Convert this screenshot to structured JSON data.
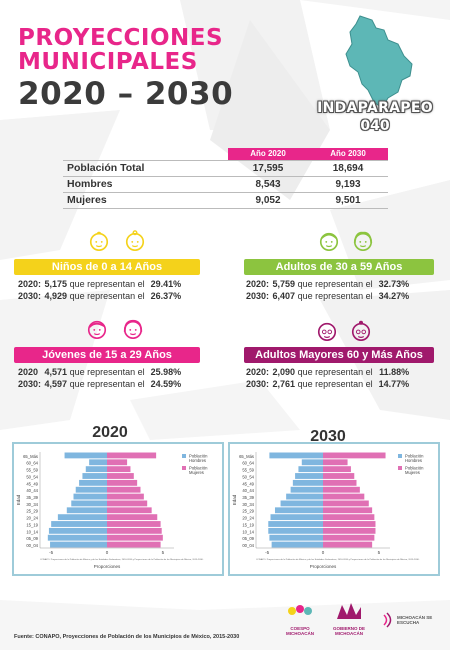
{
  "title": {
    "line1": "PROYECCIONES",
    "line2": "MUNICIPALES",
    "line3": "2020 – 2030"
  },
  "municipality": {
    "name": "INDAPARAPEO",
    "code": "040"
  },
  "table": {
    "headers": [
      "Año 2020",
      "Año 2030"
    ],
    "rows": [
      {
        "label": "Población Total",
        "v2020": "17,595",
        "v2030": "18,694"
      },
      {
        "label": "Hombres",
        "v2020": "8,543",
        "v2030": "9,193"
      },
      {
        "label": "Mujeres",
        "v2020": "9,052",
        "v2030": "9,501"
      }
    ]
  },
  "groups": [
    {
      "title": "Niños de 0 a 14 Años",
      "color": "#f4d21b",
      "icons": [
        "baby-boy-icon",
        "baby-girl-icon"
      ],
      "rows": [
        {
          "year": "2020:",
          "value": "5,175",
          "text": "que representan el",
          "pct": "29.41%"
        },
        {
          "year": "2030:",
          "value": "4,929",
          "text": "que representan el",
          "pct": "26.37%"
        }
      ]
    },
    {
      "title": "Adultos de 30 a 59 Años",
      "color": "#8cc43f",
      "icons": [
        "adult-man-icon",
        "adult-woman-icon"
      ],
      "rows": [
        {
          "year": "2020:",
          "value": "5,759",
          "text": "que representan el",
          "pct": "32.73%"
        },
        {
          "year": "2030:",
          "value": "6,407",
          "text": "que representan el",
          "pct": "34.27%"
        }
      ]
    },
    {
      "title": "Jóvenes de 15 a 29 Años",
      "color": "#e8268a",
      "icons": [
        "young-man-icon",
        "young-woman-icon"
      ],
      "rows": [
        {
          "year": "2020",
          "value": "4,571",
          "text": "que representan el",
          "pct": "25.98%"
        },
        {
          "year": "2030:",
          "value": "4,597",
          "text": "que representan el",
          "pct": "24.59%"
        }
      ]
    },
    {
      "title": "Adultos Mayores  60 y Más Años",
      "color": "#a0196c",
      "icons": [
        "elderly-man-icon",
        "elderly-woman-icon"
      ],
      "rows": [
        {
          "year": "2020:",
          "value": "2,090",
          "text": "que representan el",
          "pct": "11.88%"
        },
        {
          "year": "2030:",
          "value": "2,761",
          "text": "que representan el",
          "pct": "14.77%"
        }
      ]
    }
  ],
  "charts_titles": [
    "2020",
    "2030"
  ],
  "chart_data": [
    {
      "type": "bar",
      "title": "2020",
      "orientation": "horizontal-pyramid",
      "ylabel": "Edad",
      "xlabel": "Proporciones",
      "categories": [
        "00_04",
        "05_09",
        "10_14",
        "15_19",
        "20_24",
        "25_29",
        "30_34",
        "35_39",
        "40_44",
        "45_49",
        "50_54",
        "55_59",
        "60_64",
        "65_Más"
      ],
      "series": [
        {
          "name": "Población Hombres",
          "color": "#7fb6df",
          "values": [
            5.1,
            5.3,
            5.2,
            5.0,
            4.4,
            3.6,
            3.2,
            3.0,
            2.8,
            2.5,
            2.2,
            1.9,
            1.6,
            3.8
          ]
        },
        {
          "name": "Población Mujeres",
          "color": "#e070b4",
          "values": [
            4.8,
            5.0,
            4.9,
            4.8,
            4.5,
            4.0,
            3.6,
            3.3,
            3.0,
            2.7,
            2.4,
            2.1,
            1.8,
            4.4
          ]
        }
      ],
      "xlim": [
        -6,
        6
      ],
      "x_ticks": [
        "-5",
        "0",
        "5"
      ],
      "source_note": "CONAPO. Proyecciones de la Población de México y de las Entidades Federativas, 2016-2050 y Proyecciones de la Población de los Municipios de México, 2015-2030."
    },
    {
      "type": "bar",
      "title": "2030",
      "orientation": "horizontal-pyramid",
      "ylabel": "Edad",
      "xlabel": "Proporciones",
      "categories": [
        "00_04",
        "05_09",
        "10_14",
        "15_19",
        "20_24",
        "25_29",
        "30_34",
        "35_39",
        "40_44",
        "45_49",
        "50_54",
        "55_59",
        "60_64",
        "65_Más"
      ],
      "series": [
        {
          "name": "Población Hombres",
          "color": "#7fb6df",
          "values": [
            4.6,
            4.8,
            4.9,
            4.9,
            4.7,
            4.3,
            3.8,
            3.3,
            2.9,
            2.7,
            2.5,
            2.2,
            1.9,
            4.8
          ]
        },
        {
          "name": "Población Mujeres",
          "color": "#e070b4",
          "values": [
            4.4,
            4.6,
            4.7,
            4.7,
            4.6,
            4.4,
            4.1,
            3.7,
            3.3,
            3.0,
            2.8,
            2.5,
            2.2,
            5.6
          ]
        }
      ],
      "xlim": [
        -6,
        6
      ],
      "x_ticks": [
        "-5",
        "0",
        "5"
      ],
      "source_note": "CONAPO. Proyecciones de la Población de México y de las Entidades Federativas, 2016-2050 y Proyecciones de la Población de los Municipios de México, 2015-2030."
    }
  ],
  "logos": {
    "coespo": "COESPO MICHOACÁN",
    "gobierno": "GOBIERNO DE MICHOACÁN",
    "escucha": "MICHOACÁN SE ESCUCHA"
  },
  "footer": "Fuente: CONAPO, Proyecciones de Población de los Municipios de México, 2015-2030"
}
